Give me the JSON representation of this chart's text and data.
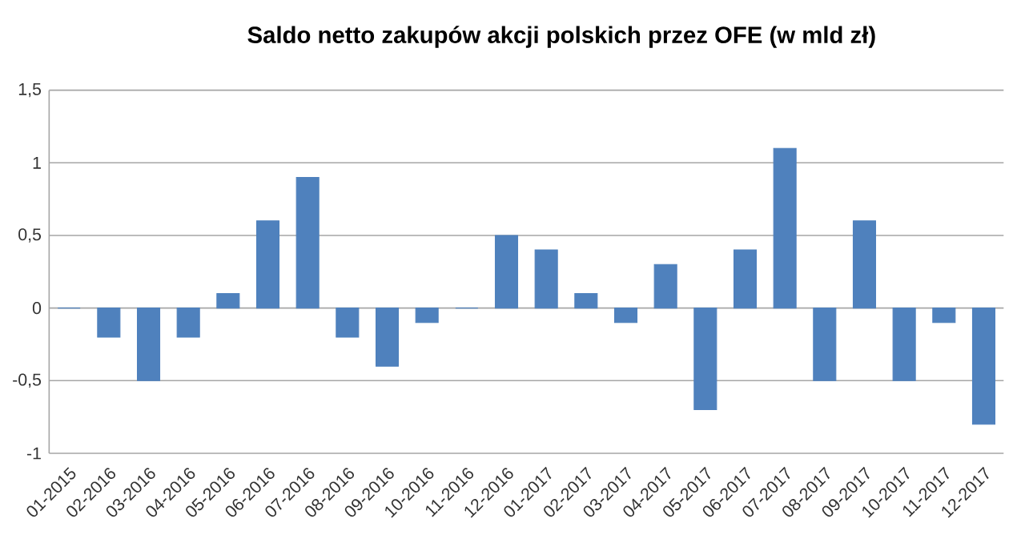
{
  "chart_data": {
    "type": "bar",
    "title": "Saldo netto zakupów akcji polskich przez OFE (w mld zł)",
    "categories": [
      "01-2015",
      "02-2016",
      "03-2016",
      "04-2016",
      "05-2016",
      "06-2016",
      "07-2016",
      "08-2016",
      "09-2016",
      "10-2016",
      "11-2016",
      "12-2016",
      "01-2017",
      "02-2017",
      "03-2017",
      "04-2017",
      "05-2017",
      "06-2017",
      "07-2017",
      "08-2017",
      "09-2017",
      "10-2017",
      "11-2017",
      "12-2017"
    ],
    "values": [
      0,
      -0.2,
      -0.5,
      -0.2,
      0.1,
      0.6,
      0.9,
      -0.2,
      -0.4,
      -0.1,
      0,
      0.5,
      0.4,
      0.1,
      -0.1,
      0.3,
      -0.7,
      0.4,
      1.1,
      -0.5,
      0.6,
      -0.5,
      -0.1,
      -0.8
    ],
    "color": "#4f81bd",
    "ylim": [
      -1,
      1.5
    ],
    "yticks": [
      {
        "value": -1,
        "label": "-1"
      },
      {
        "value": -0.5,
        "label": "-0,5"
      },
      {
        "value": 0,
        "label": "0"
      },
      {
        "value": 0.5,
        "label": "0,5"
      },
      {
        "value": 1,
        "label": "1"
      },
      {
        "value": 1.5,
        "label": "1,5"
      }
    ],
    "grid": "y"
  }
}
